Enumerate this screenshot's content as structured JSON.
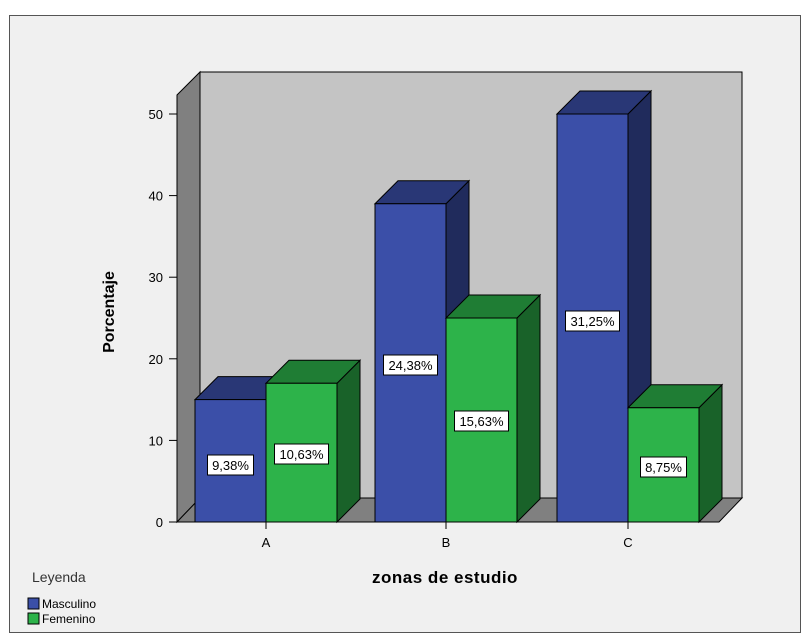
{
  "chart_data": {
    "type": "bar",
    "title": "",
    "xlabel": "zonas de estudio",
    "ylabel": "Porcentaje",
    "categories": [
      "A",
      "B",
      "C"
    ],
    "ylim": [
      0,
      50
    ],
    "yticks": [
      0,
      10,
      20,
      30,
      40,
      50
    ],
    "legend_title": "Leyenda",
    "legend_position": "bottom-left",
    "series": [
      {
        "name": "Masculino",
        "color": "#3b4fa8",
        "values": [
          15,
          39,
          50
        ],
        "labels": [
          "9,38%",
          "24,38%",
          "31,25%"
        ]
      },
      {
        "name": "Femenino",
        "color": "#2db34a",
        "values": [
          17,
          25,
          14
        ],
        "labels": [
          "10,63%",
          "15,63%",
          "8,75%"
        ]
      }
    ],
    "grid": false,
    "style": "3d-bars"
  }
}
